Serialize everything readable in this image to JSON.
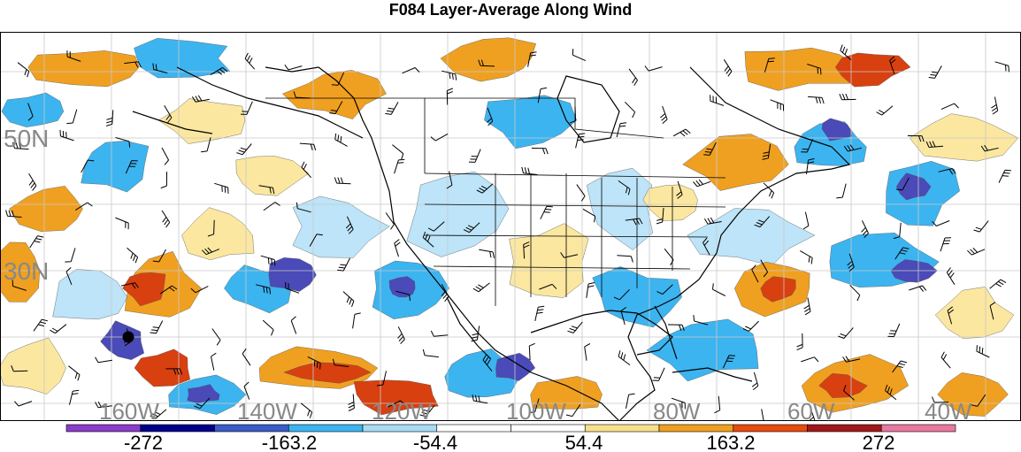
{
  "title": "F084 Layer-Average Along Wind",
  "map": {
    "lat_labels": [
      "50N",
      "30N"
    ],
    "lon_labels": [
      "160W",
      "140W",
      "120W",
      "100W",
      "80W",
      "60W",
      "40W"
    ],
    "marker": "station-dot"
  },
  "colorbar": {
    "colors": [
      "#8b3cc8",
      "#00008b",
      "#3a5cc8",
      "#3cb4f0",
      "#a8dcf5",
      "#ffffff",
      "#ffffff",
      "#f7e08c",
      "#f0a020",
      "#e84a10",
      "#a01818",
      "#e878a0"
    ],
    "tick_labels": [
      "-272",
      "-163.2",
      "-54.4",
      "54.4",
      "163.2",
      "272"
    ]
  },
  "colors": {
    "strong_negative": "#4a4ab8",
    "negative": "#3cb4f0",
    "weak_negative": "#bde4f8",
    "weak_positive": "#fbe7a0",
    "positive": "#f0a020",
    "strong_positive": "#d84010",
    "coast": "#000000",
    "grid": "#c8c8c8"
  }
}
